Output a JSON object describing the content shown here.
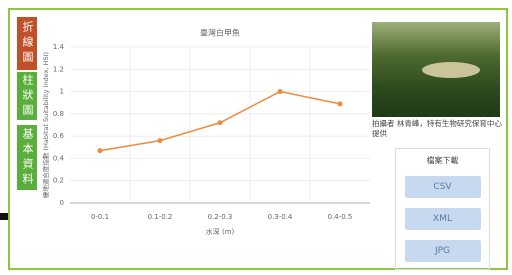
{
  "tabs": [
    "折線圖",
    "柱狀圖",
    "基本資料"
  ],
  "chart_data": {
    "type": "line",
    "title": "臺灣白甲魚",
    "x_label": "水深 (m)",
    "y_label": "棲地適合度指數 (Habitat Suitability Index, HSI)",
    "categories": [
      "0-0.1",
      "0.1-0.2",
      "0.2-0.3",
      "0.3-0.4",
      "0.4-0.5"
    ],
    "values": [
      0.47,
      0.56,
      0.72,
      1.0,
      0.89
    ],
    "color": "#ee8a3c",
    "ylim": [
      0,
      1.4
    ],
    "yticks": [
      0,
      0.2,
      0.4,
      0.6,
      0.8,
      1,
      1.2,
      1.4
    ],
    "grid": true
  },
  "photo_caption": "拍攝者 林青峰，特有生物研究保育中心提供",
  "download": {
    "title": "檔案下載",
    "buttons": [
      "CSV",
      "XML",
      "JPG"
    ]
  }
}
